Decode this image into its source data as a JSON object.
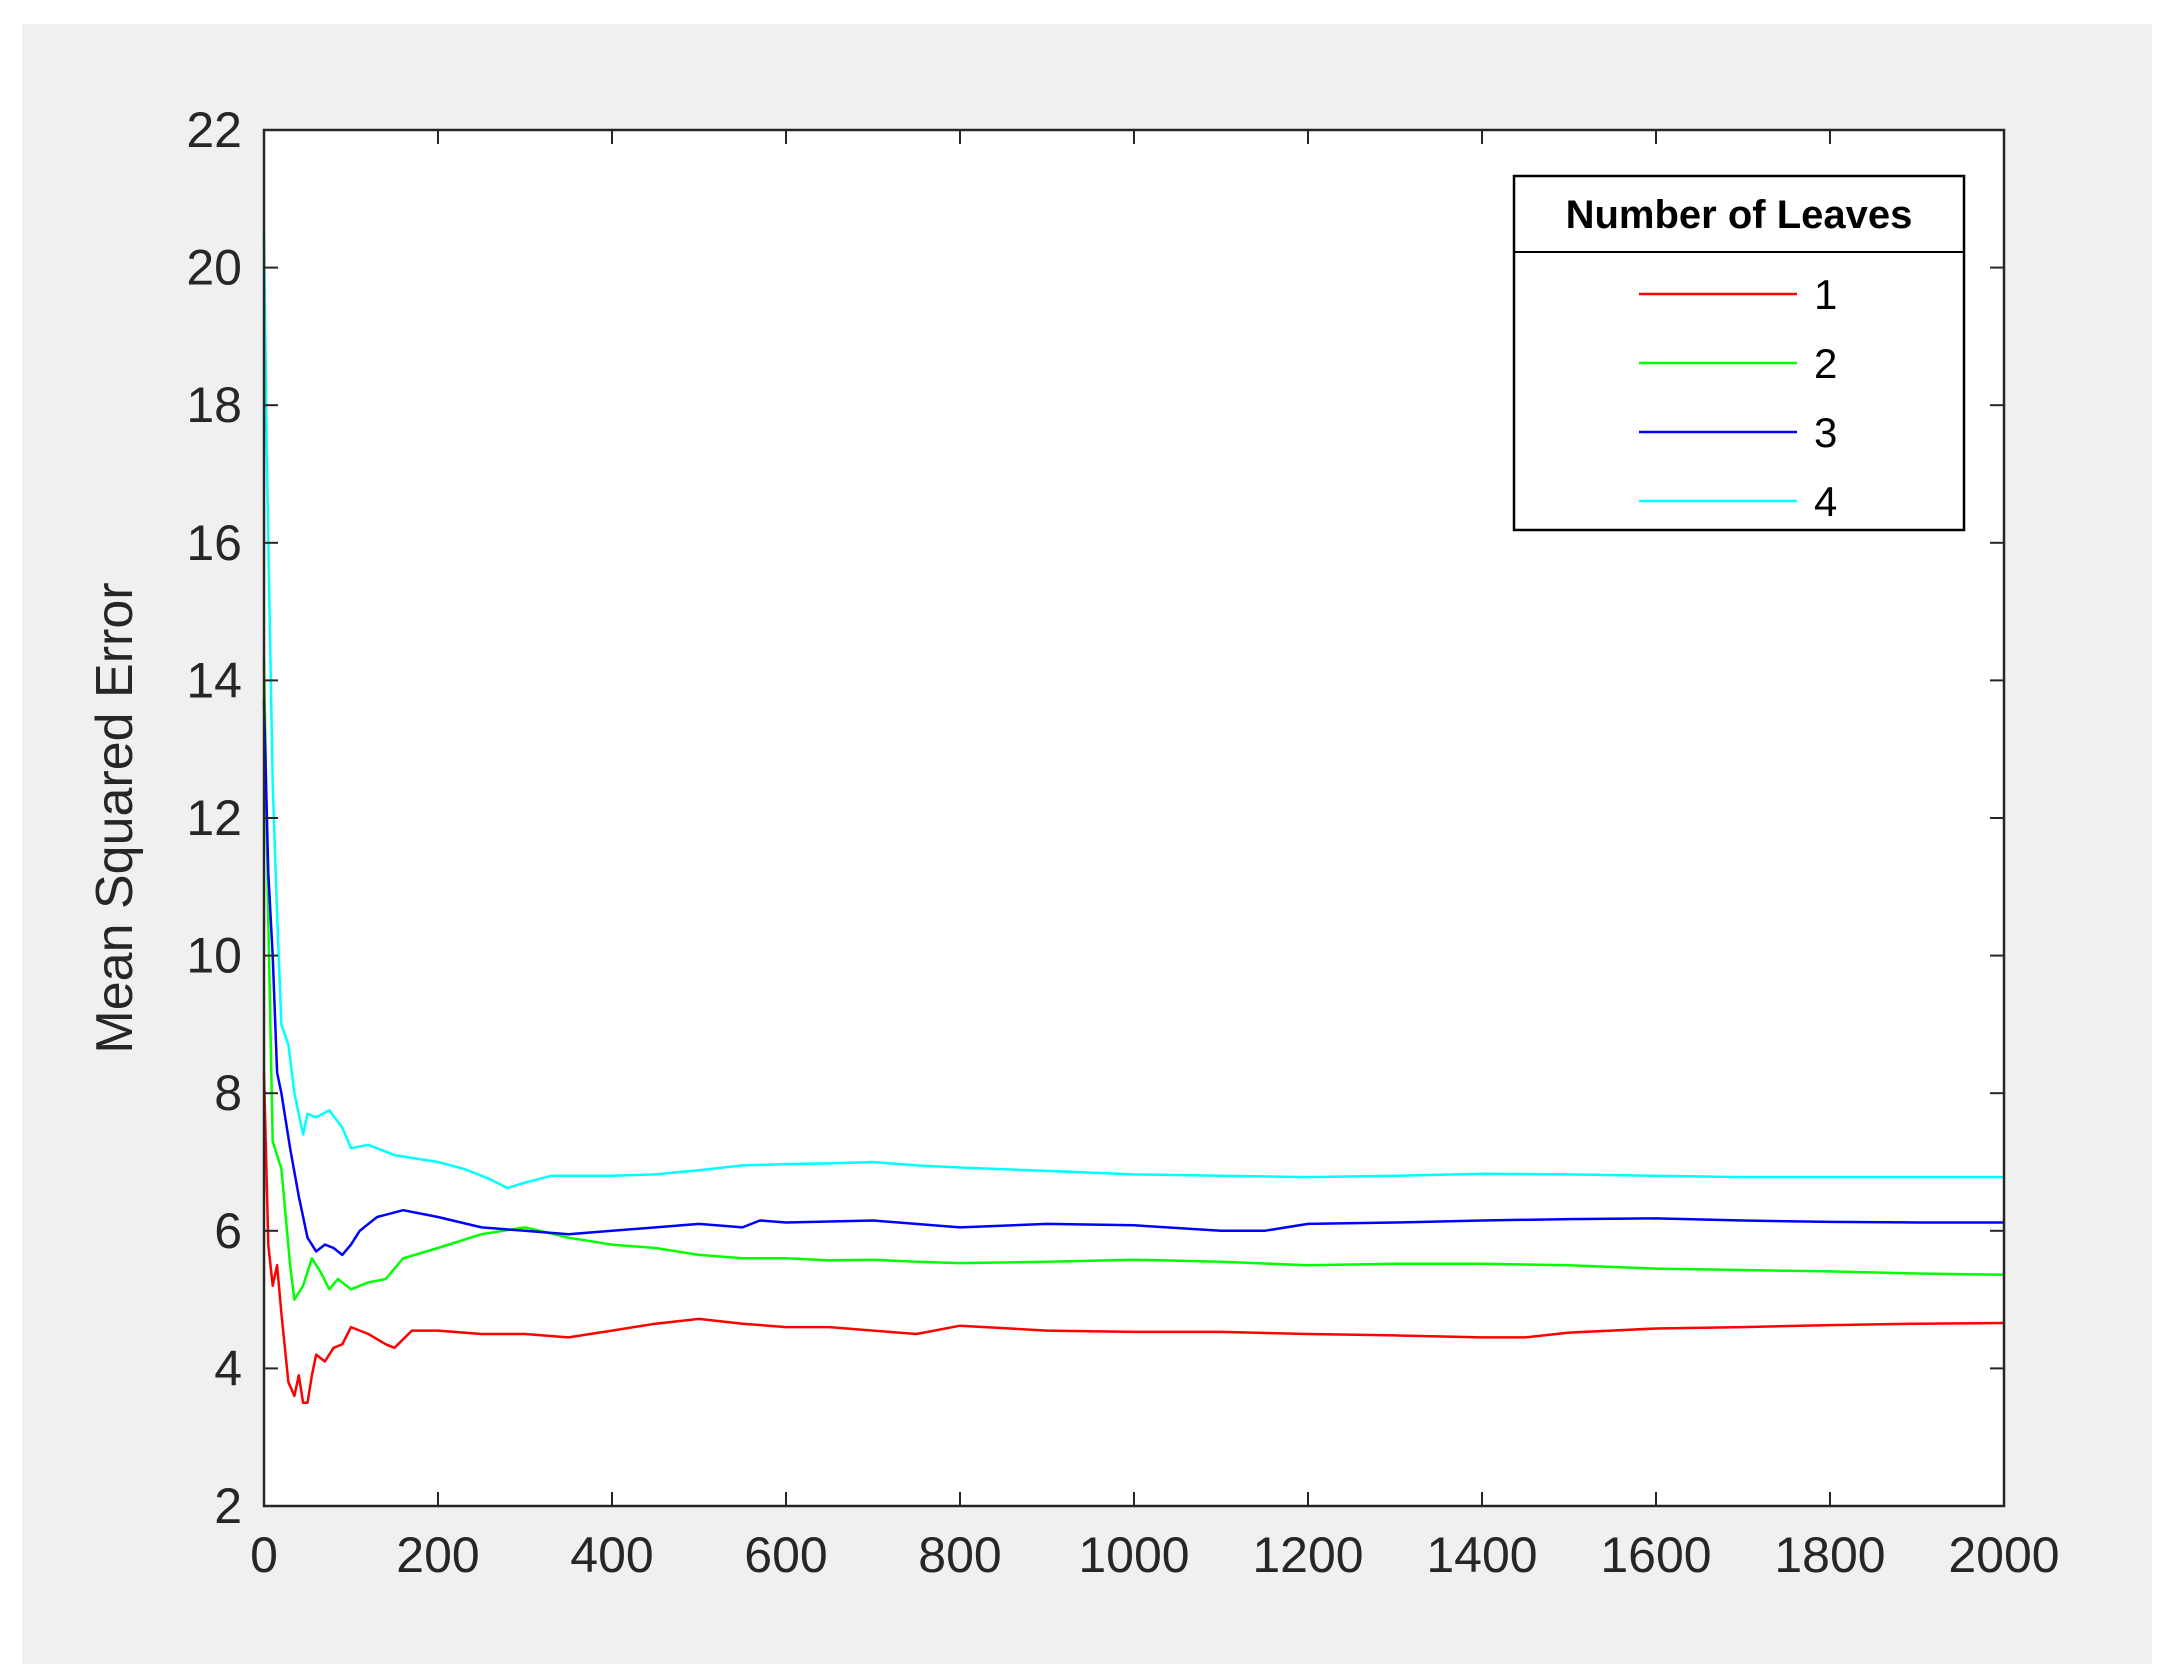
{
  "chart_data": {
    "type": "line",
    "title": "",
    "xlabel": "",
    "ylabel": "Mean Squared Error",
    "xlim": [
      0,
      2000
    ],
    "ylim": [
      2,
      22
    ],
    "xticks": [
      0,
      200,
      400,
      600,
      800,
      1000,
      1200,
      1400,
      1600,
      1800,
      2000
    ],
    "yticks": [
      2,
      4,
      6,
      8,
      10,
      12,
      14,
      16,
      18,
      20,
      22
    ],
    "grid": false,
    "legend": {
      "title": "Number of Leaves",
      "placement": "top-right"
    },
    "series": [
      {
        "name": "1",
        "color": "#ff0000",
        "points": [
          [
            0,
            8.3
          ],
          [
            5,
            5.8
          ],
          [
            10,
            5.2
          ],
          [
            15,
            5.5
          ],
          [
            20,
            4.8
          ],
          [
            28,
            3.8
          ],
          [
            35,
            3.6
          ],
          [
            40,
            3.9
          ],
          [
            45,
            3.5
          ],
          [
            50,
            3.5
          ],
          [
            55,
            3.9
          ],
          [
            60,
            4.2
          ],
          [
            70,
            4.1
          ],
          [
            80,
            4.3
          ],
          [
            90,
            4.35
          ],
          [
            100,
            4.6
          ],
          [
            120,
            4.5
          ],
          [
            140,
            4.35
          ],
          [
            150,
            4.3
          ],
          [
            170,
            4.55
          ],
          [
            200,
            4.55
          ],
          [
            250,
            4.5
          ],
          [
            300,
            4.5
          ],
          [
            350,
            4.45
          ],
          [
            400,
            4.55
          ],
          [
            450,
            4.65
          ],
          [
            500,
            4.72
          ],
          [
            550,
            4.65
          ],
          [
            600,
            4.6
          ],
          [
            650,
            4.6
          ],
          [
            700,
            4.55
          ],
          [
            750,
            4.5
          ],
          [
            800,
            4.62
          ],
          [
            900,
            4.55
          ],
          [
            1000,
            4.53
          ],
          [
            1100,
            4.53
          ],
          [
            1200,
            4.5
          ],
          [
            1300,
            4.48
          ],
          [
            1400,
            4.45
          ],
          [
            1450,
            4.45
          ],
          [
            1500,
            4.52
          ],
          [
            1600,
            4.58
          ],
          [
            1700,
            4.6
          ],
          [
            1800,
            4.63
          ],
          [
            1900,
            4.65
          ],
          [
            2000,
            4.66
          ]
        ]
      },
      {
        "name": "2",
        "color": "#00ff00",
        "points": [
          [
            0,
            14.3
          ],
          [
            5,
            10.5
          ],
          [
            10,
            7.3
          ],
          [
            20,
            6.9
          ],
          [
            30,
            5.5
          ],
          [
            35,
            5.0
          ],
          [
            45,
            5.2
          ],
          [
            55,
            5.6
          ],
          [
            65,
            5.4
          ],
          [
            75,
            5.15
          ],
          [
            85,
            5.3
          ],
          [
            100,
            5.15
          ],
          [
            120,
            5.25
          ],
          [
            140,
            5.3
          ],
          [
            160,
            5.6
          ],
          [
            200,
            5.75
          ],
          [
            250,
            5.95
          ],
          [
            300,
            6.05
          ],
          [
            350,
            5.9
          ],
          [
            400,
            5.8
          ],
          [
            450,
            5.75
          ],
          [
            500,
            5.65
          ],
          [
            550,
            5.6
          ],
          [
            600,
            5.6
          ],
          [
            650,
            5.57
          ],
          [
            700,
            5.58
          ],
          [
            750,
            5.55
          ],
          [
            800,
            5.53
          ],
          [
            900,
            5.55
          ],
          [
            1000,
            5.58
          ],
          [
            1100,
            5.55
          ],
          [
            1200,
            5.5
          ],
          [
            1300,
            5.52
          ],
          [
            1400,
            5.52
          ],
          [
            1500,
            5.5
          ],
          [
            1600,
            5.45
          ],
          [
            1700,
            5.43
          ],
          [
            1800,
            5.41
          ],
          [
            1900,
            5.38
          ],
          [
            2000,
            5.36
          ]
        ]
      },
      {
        "name": "3",
        "color": "#0000ff",
        "points": [
          [
            0,
            13.7
          ],
          [
            5,
            11.2
          ],
          [
            10,
            10.0
          ],
          [
            15,
            8.3
          ],
          [
            20,
            8.0
          ],
          [
            30,
            7.2
          ],
          [
            40,
            6.5
          ],
          [
            50,
            5.9
          ],
          [
            60,
            5.7
          ],
          [
            70,
            5.8
          ],
          [
            80,
            5.75
          ],
          [
            90,
            5.65
          ],
          [
            100,
            5.8
          ],
          [
            110,
            6.0
          ],
          [
            130,
            6.2
          ],
          [
            160,
            6.3
          ],
          [
            200,
            6.2
          ],
          [
            250,
            6.05
          ],
          [
            300,
            6.0
          ],
          [
            350,
            5.95
          ],
          [
            400,
            6.0
          ],
          [
            450,
            6.05
          ],
          [
            500,
            6.1
          ],
          [
            550,
            6.05
          ],
          [
            570,
            6.15
          ],
          [
            600,
            6.12
          ],
          [
            700,
            6.15
          ],
          [
            800,
            6.05
          ],
          [
            900,
            6.1
          ],
          [
            1000,
            6.08
          ],
          [
            1100,
            6.0
          ],
          [
            1150,
            6.0
          ],
          [
            1200,
            6.1
          ],
          [
            1300,
            6.12
          ],
          [
            1400,
            6.15
          ],
          [
            1500,
            6.17
          ],
          [
            1600,
            6.18
          ],
          [
            1700,
            6.15
          ],
          [
            1800,
            6.13
          ],
          [
            1900,
            6.12
          ],
          [
            2000,
            6.12
          ]
        ]
      },
      {
        "name": "4",
        "color": "#00ffff",
        "points": [
          [
            0,
            20.5
          ],
          [
            3,
            17.5
          ],
          [
            6,
            15.3
          ],
          [
            10,
            12.5
          ],
          [
            15,
            10.6
          ],
          [
            20,
            9.0
          ],
          [
            28,
            8.7
          ],
          [
            35,
            8.0
          ],
          [
            45,
            7.4
          ],
          [
            50,
            7.7
          ],
          [
            60,
            7.65
          ],
          [
            75,
            7.75
          ],
          [
            90,
            7.5
          ],
          [
            100,
            7.2
          ],
          [
            120,
            7.25
          ],
          [
            150,
            7.1
          ],
          [
            200,
            7.0
          ],
          [
            230,
            6.9
          ],
          [
            260,
            6.75
          ],
          [
            280,
            6.62
          ],
          [
            300,
            6.7
          ],
          [
            330,
            6.8
          ],
          [
            400,
            6.8
          ],
          [
            450,
            6.82
          ],
          [
            500,
            6.88
          ],
          [
            550,
            6.95
          ],
          [
            600,
            6.97
          ],
          [
            650,
            6.98
          ],
          [
            700,
            7.0
          ],
          [
            750,
            6.95
          ],
          [
            800,
            6.92
          ],
          [
            900,
            6.87
          ],
          [
            1000,
            6.82
          ],
          [
            1100,
            6.8
          ],
          [
            1200,
            6.78
          ],
          [
            1300,
            6.8
          ],
          [
            1400,
            6.83
          ],
          [
            1500,
            6.82
          ],
          [
            1600,
            6.8
          ],
          [
            1700,
            6.78
          ],
          [
            1800,
            6.78
          ],
          [
            1900,
            6.78
          ],
          [
            2000,
            6.78
          ]
        ]
      }
    ]
  }
}
